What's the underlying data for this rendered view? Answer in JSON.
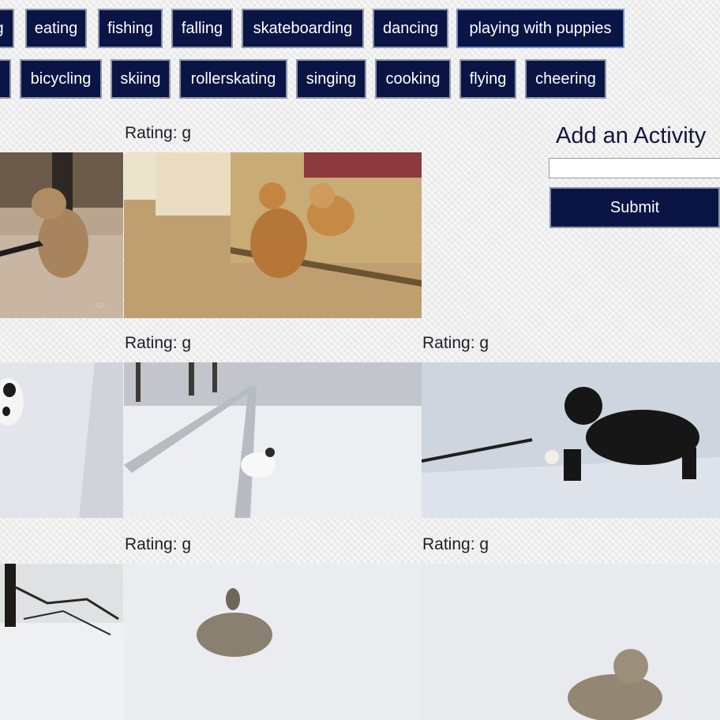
{
  "topics": {
    "row1": [
      "g",
      "eating",
      "fishing",
      "falling",
      "skateboarding",
      "dancing",
      "playing with puppies"
    ],
    "row2": [
      "",
      "bicycling",
      "skiing",
      "rollerskating",
      "singing",
      "cooking",
      "flying",
      "cheering"
    ],
    "active": "playing with puppies"
  },
  "results": [
    {
      "rating": "Rating: g"
    },
    {
      "rating": "Rating: g"
    },
    {
      "rating": "Rating: g"
    },
    {
      "rating": "Rating: g"
    },
    {
      "rating": "Rating: g"
    }
  ],
  "form": {
    "title": "Add an Activity",
    "input_value": "",
    "submit_label": "Submit"
  },
  "colors": {
    "button_bg": "#0a1545",
    "button_border": "#8e96a6",
    "active_border": "#6f93c8"
  }
}
